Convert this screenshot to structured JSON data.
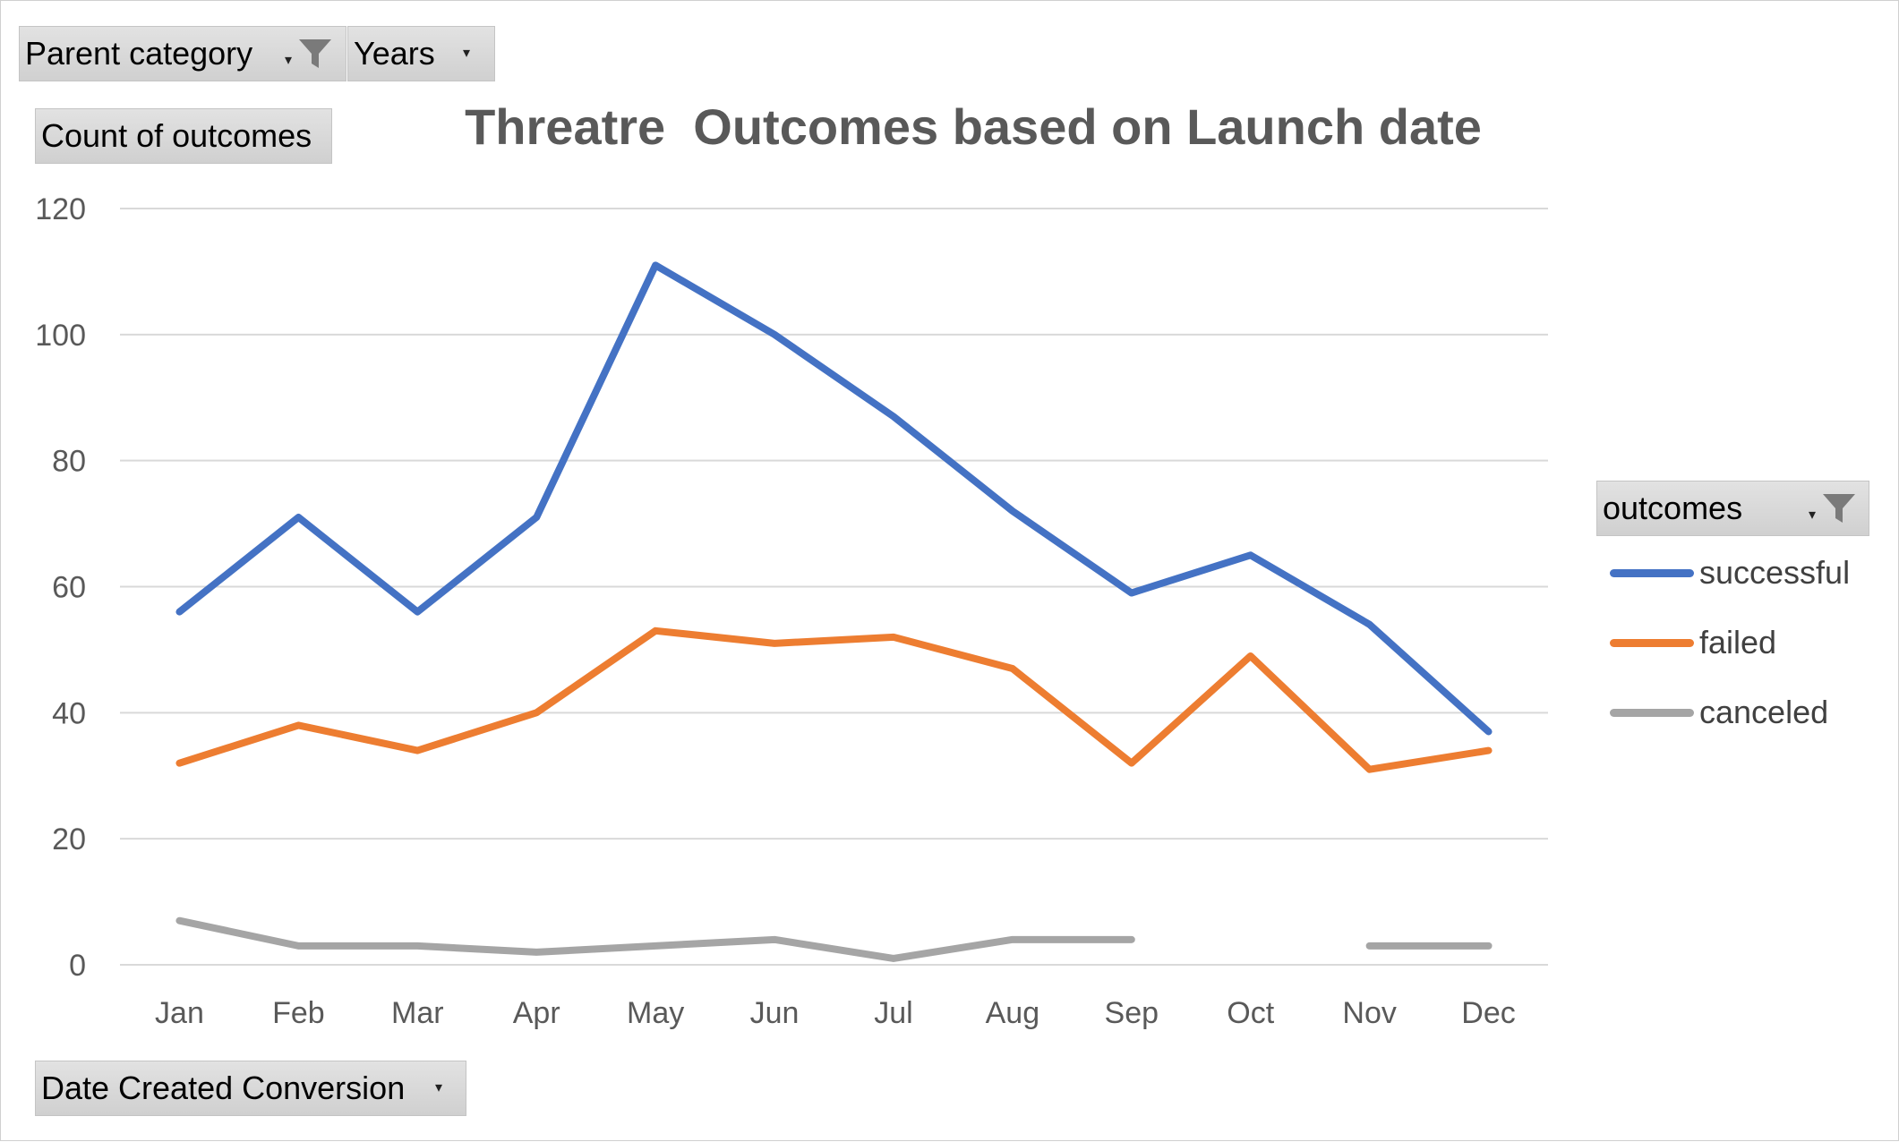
{
  "filters": {
    "parent_category": "Parent category",
    "years": "Years",
    "count_of_outcomes": "Count of outcomes",
    "date_created": "Date Created Conversion",
    "outcomes": "outcomes"
  },
  "icons": [
    "filter-funnel-icon",
    "dropdown-arrow-icon"
  ],
  "chart_data": {
    "type": "line",
    "title": "Threatre  Outcomes based on Launch date",
    "xlabel": "",
    "ylabel": "",
    "categories": [
      "Jan",
      "Feb",
      "Mar",
      "Apr",
      "May",
      "Jun",
      "Jul",
      "Aug",
      "Sep",
      "Oct",
      "Nov",
      "Dec"
    ],
    "ylim": [
      0,
      120
    ],
    "yticks": [
      "0",
      "20",
      "40",
      "60",
      "80",
      "100",
      "120"
    ],
    "grid": true,
    "legend_position": "right",
    "series": [
      {
        "name": "successful",
        "color": "#4472C4",
        "values": [
          56,
          71,
          56,
          71,
          111,
          100,
          87,
          72,
          59,
          65,
          54,
          37
        ]
      },
      {
        "name": "failed",
        "color": "#ED7D31",
        "values": [
          32,
          38,
          34,
          40,
          53,
          51,
          52,
          47,
          32,
          49,
          31,
          34
        ]
      },
      {
        "name": "canceled",
        "color": "#A5A5A5",
        "values": [
          7,
          3,
          3,
          2,
          3,
          4,
          1,
          4,
          4,
          null,
          3,
          3
        ]
      }
    ]
  }
}
